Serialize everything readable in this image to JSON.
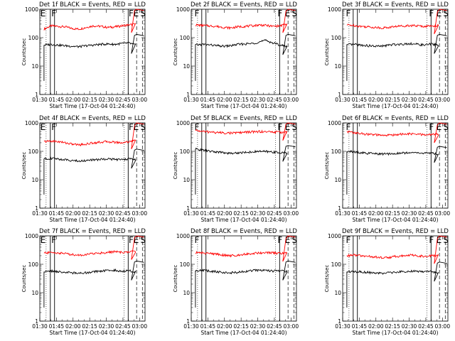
{
  "page_title": "",
  "colors": {
    "background": "#ffffff",
    "events": "#000000",
    "lld": "#ff0000",
    "axes": "#000000"
  },
  "chart_data": [
    {
      "type": "line",
      "title": "Det 1f BLACK = Events, RED = LLD",
      "xlabel": "Start Time (17-Oct-04 01:24:40)",
      "ylabel": "Counts/sec",
      "yscale": "log",
      "ylim": [
        1,
        1000
      ],
      "x_ticks": [
        "01:30",
        "01:45",
        "02:00",
        "02:15",
        "02:30",
        "02:45",
        "03:00"
      ],
      "y_ticks": [
        "1",
        "10",
        "100",
        "1000"
      ],
      "markers": [
        {
          "label": "E"
        },
        {
          "label": "F"
        },
        {
          "label": "F"
        },
        {
          "label": "E"
        },
        {
          "label": "S"
        }
      ],
      "series": [
        {
          "name": "LLD",
          "color": "#ff0000",
          "values": [
            200,
            260,
            250,
            240,
            210,
            200,
            230,
            260,
            250,
            230,
            240,
            260,
            280,
            300,
            900,
            1000
          ]
        },
        {
          "name": "Events",
          "color": "#000000",
          "values": [
            55,
            58,
            55,
            52,
            50,
            48,
            52,
            55,
            58,
            60,
            58,
            62,
            65,
            55,
            120,
            130
          ]
        }
      ]
    },
    {
      "type": "line",
      "title": "Det 2f BLACK = Events, RED = LLD",
      "xlabel": "Start Time (17-Oct-04 01:24:40)",
      "ylabel": "Counts/sec",
      "yscale": "log",
      "ylim": [
        1,
        1000
      ],
      "x_ticks": [
        "01:30",
        "01:45",
        "02:00",
        "02:15",
        "02:30",
        "02:45",
        "03:00"
      ],
      "y_ticks": [
        "1",
        "10",
        "100",
        "1000"
      ],
      "markers": [
        {
          "label": "F"
        },
        {
          "label": "F"
        },
        {
          "label": "E"
        },
        {
          "label": "S"
        }
      ],
      "series": [
        {
          "name": "LLD",
          "color": "#ff0000",
          "values": [
            280,
            270,
            260,
            250,
            230,
            220,
            240,
            250,
            260,
            280,
            270,
            250,
            260,
            300,
            850,
            1000
          ]
        },
        {
          "name": "Events",
          "color": "#000000",
          "values": [
            55,
            58,
            56,
            52,
            50,
            52,
            58,
            60,
            62,
            70,
            80,
            65,
            55,
            50,
            120,
            130
          ]
        }
      ]
    },
    {
      "type": "line",
      "title": "Det 3f BLACK = Events, RED = LLD",
      "xlabel": "Start Time (17-Oct-04 01:24:40)",
      "ylabel": "Counts/sec",
      "yscale": "log",
      "ylim": [
        1,
        1000
      ],
      "x_ticks": [
        "01:30",
        "01:45",
        "02:00",
        "02:15",
        "02:30",
        "02:45",
        "03:00"
      ],
      "y_ticks": [
        "1",
        "10",
        "100",
        "1000"
      ],
      "markers": [
        {
          "label": "F"
        },
        {
          "label": "F"
        },
        {
          "label": "E"
        },
        {
          "label": "S"
        }
      ],
      "series": [
        {
          "name": "LLD",
          "color": "#ff0000",
          "values": [
            280,
            270,
            250,
            240,
            230,
            220,
            230,
            250,
            260,
            270,
            260,
            250,
            260,
            270,
            800,
            1000
          ]
        },
        {
          "name": "Events",
          "color": "#000000",
          "values": [
            55,
            58,
            55,
            52,
            50,
            50,
            55,
            58,
            60,
            62,
            58,
            55,
            60,
            55,
            120,
            130
          ]
        }
      ]
    },
    {
      "type": "line",
      "title": "Det 4f BLACK = Events, RED = LLD",
      "xlabel": "Start Time (17-Oct-04 01:24:40)",
      "ylabel": "Counts/sec",
      "yscale": "log",
      "ylim": [
        1,
        1000
      ],
      "x_ticks": [
        "01:30",
        "01:45",
        "02:00",
        "02:15",
        "02:30",
        "02:45",
        "03:00"
      ],
      "y_ticks": [
        "1",
        "10",
        "100",
        "1000"
      ],
      "markers": [
        {
          "label": "E"
        },
        {
          "label": "F"
        },
        {
          "label": "F"
        },
        {
          "label": "E"
        },
        {
          "label": "S"
        }
      ],
      "series": [
        {
          "name": "LLD",
          "color": "#ff0000",
          "values": [
            220,
            230,
            220,
            200,
            180,
            170,
            180,
            200,
            210,
            220,
            210,
            200,
            220,
            240,
            800,
            1000
          ]
        },
        {
          "name": "Events",
          "color": "#000000",
          "values": [
            55,
            56,
            54,
            50,
            48,
            45,
            48,
            50,
            52,
            55,
            52,
            50,
            55,
            50,
            110,
            120
          ]
        }
      ]
    },
    {
      "type": "line",
      "title": "Det 5f BLACK = Events, RED = LLD",
      "xlabel": "Start Time (17-Oct-04 01:24:40)",
      "ylabel": "Counts/sec",
      "yscale": "log",
      "ylim": [
        1,
        1000
      ],
      "x_ticks": [
        "01:30",
        "01:45",
        "02:00",
        "02:15",
        "02:30",
        "02:45",
        "03:00"
      ],
      "y_ticks": [
        "1",
        "10",
        "100",
        "1000"
      ],
      "markers": [
        {
          "label": "F"
        },
        {
          "label": "F"
        },
        {
          "label": "E"
        },
        {
          "label": "S"
        }
      ],
      "series": [
        {
          "name": "LLD",
          "color": "#ff0000",
          "values": [
            550,
            500,
            480,
            460,
            450,
            440,
            450,
            470,
            480,
            500,
            490,
            480,
            470,
            480,
            900,
            1000
          ]
        },
        {
          "name": "Events",
          "color": "#000000",
          "values": [
            120,
            110,
            100,
            95,
            90,
            85,
            88,
            92,
            95,
            100,
            98,
            95,
            90,
            88,
            150,
            160
          ]
        }
      ]
    },
    {
      "type": "line",
      "title": "Det 6f BLACK = Events, RED = LLD",
      "xlabel": "Start Time (17-Oct-04 01:24:40)",
      "ylabel": "Counts/sec",
      "yscale": "log",
      "ylim": [
        1,
        1000
      ],
      "x_ticks": [
        "01:30",
        "01:45",
        "02:00",
        "02:15",
        "02:30",
        "02:45",
        "03:00"
      ],
      "y_ticks": [
        "1",
        "10",
        "100",
        "1000"
      ],
      "markers": [
        {
          "label": "F"
        },
        {
          "label": "F"
        },
        {
          "label": "E"
        },
        {
          "label": "S"
        }
      ],
      "series": [
        {
          "name": "LLD",
          "color": "#ff0000",
          "values": [
            500,
            450,
            420,
            400,
            380,
            360,
            370,
            390,
            400,
            410,
            400,
            380,
            390,
            400,
            850,
            1000
          ]
        },
        {
          "name": "Events",
          "color": "#000000",
          "values": [
            100,
            95,
            90,
            85,
            82,
            80,
            82,
            85,
            88,
            90,
            88,
            85,
            88,
            80,
            140,
            150
          ]
        }
      ]
    },
    {
      "type": "line",
      "title": "Det 7f BLACK = Events, RED = LLD",
      "xlabel": "Start Time (17-Oct-04 01:24:40)",
      "ylabel": "Counts/sec",
      "yscale": "log",
      "ylim": [
        1,
        1000
      ],
      "x_ticks": [
        "01:30",
        "01:45",
        "02:00",
        "02:15",
        "02:30",
        "02:45",
        "03:00"
      ],
      "y_ticks": [
        "1",
        "10",
        "100",
        "1000"
      ],
      "markers": [
        {
          "label": "E"
        },
        {
          "label": "F"
        },
        {
          "label": "F"
        },
        {
          "label": "E"
        },
        {
          "label": "S"
        }
      ],
      "series": [
        {
          "name": "LLD",
          "color": "#ff0000",
          "values": [
            250,
            260,
            250,
            240,
            220,
            210,
            220,
            240,
            250,
            260,
            280,
            260,
            270,
            290,
            850,
            1000
          ]
        },
        {
          "name": "Events",
          "color": "#000000",
          "values": [
            55,
            58,
            55,
            52,
            50,
            48,
            50,
            55,
            58,
            60,
            62,
            58,
            60,
            55,
            120,
            130
          ]
        }
      ]
    },
    {
      "type": "line",
      "title": "Det 8f BLACK = Events, RED = LLD",
      "xlabel": "Start Time (17-Oct-04 01:24:40)",
      "ylabel": "Counts/sec",
      "yscale": "log",
      "ylim": [
        1,
        1000
      ],
      "x_ticks": [
        "01:30",
        "01:45",
        "02:00",
        "02:15",
        "02:30",
        "02:45",
        "03:00"
      ],
      "y_ticks": [
        "1",
        "10",
        "100",
        "1000"
      ],
      "markers": [
        {
          "label": "F"
        },
        {
          "label": "F"
        },
        {
          "label": "E"
        },
        {
          "label": "S"
        }
      ],
      "series": [
        {
          "name": "LLD",
          "color": "#ff0000",
          "values": [
            260,
            250,
            240,
            230,
            210,
            200,
            210,
            230,
            240,
            250,
            260,
            250,
            240,
            250,
            800,
            1000
          ]
        },
        {
          "name": "Events",
          "color": "#000000",
          "values": [
            60,
            62,
            58,
            55,
            52,
            50,
            52,
            56,
            60,
            62,
            60,
            58,
            60,
            55,
            120,
            130
          ]
        }
      ]
    },
    {
      "type": "line",
      "title": "Det 9f BLACK = Events, RED = LLD",
      "xlabel": "Start Time (17-Oct-04 01:24:40)",
      "ylabel": "Counts/sec",
      "yscale": "log",
      "ylim": [
        1,
        1000
      ],
      "x_ticks": [
        "01:30",
        "01:45",
        "02:00",
        "02:15",
        "02:30",
        "02:45",
        "03:00"
      ],
      "y_ticks": [
        "1",
        "10",
        "100",
        "1000"
      ],
      "markers": [
        {
          "label": "F"
        },
        {
          "label": "F"
        },
        {
          "label": "E"
        },
        {
          "label": "S"
        }
      ],
      "series": [
        {
          "name": "LLD",
          "color": "#ff0000",
          "values": [
            200,
            210,
            200,
            190,
            180,
            170,
            175,
            190,
            200,
            210,
            200,
            190,
            200,
            210,
            800,
            1000
          ]
        },
        {
          "name": "Events",
          "color": "#000000",
          "values": [
            55,
            56,
            54,
            52,
            50,
            48,
            50,
            52,
            55,
            58,
            56,
            54,
            56,
            50,
            110,
            120
          ]
        }
      ]
    }
  ]
}
